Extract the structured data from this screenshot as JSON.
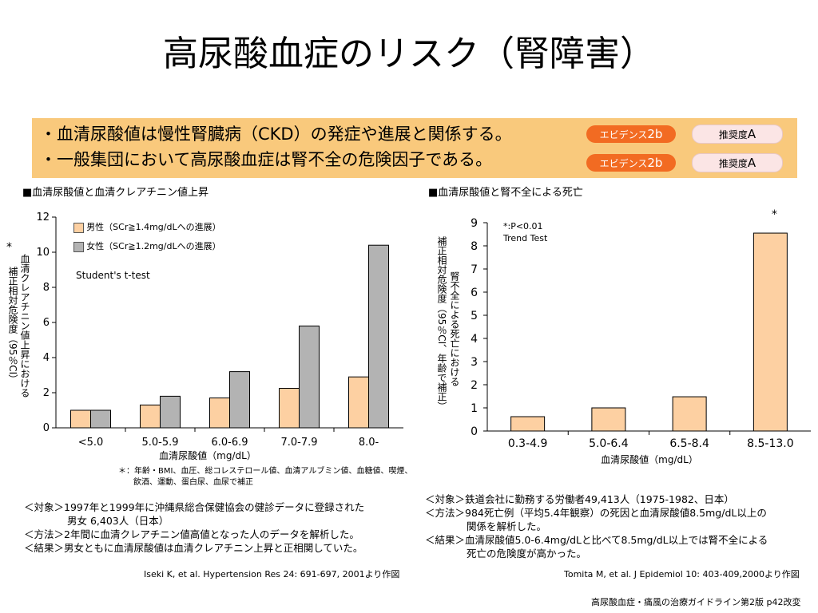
{
  "title": "高尿酸血症のリスク（腎障害）",
  "summary": {
    "lines": [
      {
        "text": "・血清尿酸値は慢性腎臓病（CKD）の発症や進展と関係する。",
        "evidence_prefix": "エビデンス",
        "evidence_level": "2b",
        "recommend_prefix": "推奨度",
        "recommend_level": "A"
      },
      {
        "text": "・一般集団において高尿酸血症は腎不全の危険因子である。",
        "evidence_prefix": "エビデンス",
        "evidence_level": "2b",
        "recommend_prefix": "推奨度",
        "recommend_level": "A"
      }
    ],
    "colors": {
      "panel": "#f9c97c",
      "evidence_badge": "#f26b22",
      "recommend_badge": "#fbe5e5"
    }
  },
  "left": {
    "heading": "■血清尿酸値と血清クレアチニン値上昇",
    "asterisk": "*",
    "ylabel_main": "血清クレアチニン値上昇における",
    "ylabel_sub": "補正相対危険度（95％CI）",
    "test_note": "Student's t-test",
    "footnote_line1": "＊：年齢・BMI、血圧、総コレステロール値、血清アルブミン値、血糖値、喫煙、",
    "footnote_line2": "飲酒、運動、蛋白尿、血尿で補正",
    "notes": [
      "＜対象＞1997年と1999年に沖縄県総合保健協会の健診データに登録された",
      "男女 6,403人（日本）",
      "＜方法＞2年間に血清クレアチニン値高値となった人のデータを解析した。",
      "＜結果＞男女ともに血清尿酸値は血清クレアチニン上昇と正相関していた。"
    ],
    "citation": "Iseki K, et al. Hypertension Res 24: 691-697, 2001より作図"
  },
  "right": {
    "heading": "■血清尿酸値と腎不全による死亡",
    "ylabel_main": "腎不全による死亡における",
    "ylabel_sub": "補正相対危険度（95％CI、年齢で補正）",
    "sig_note": "*:P<0.01",
    "test_note": "Trend Test",
    "notes": [
      "＜対象＞鉄道会社に勤務する労働者49,413人（1975-1982、日本）",
      "＜方法＞984死亡例（平均5.4年観察）の死因と血清尿酸値8.5mg/dL以上の",
      "関係を解析した。",
      "＜結果＞血清尿酸値5.0-6.4mg/dLと比べて8.5mg/dL以上では腎不全による",
      "死亡の危険度が高かった。"
    ],
    "citation": "Tomita M, et al. J Epidemiol 10: 403-409,2000より作図"
  },
  "source": "高尿酸血症・痛風の治療ガイドライン第2版 p42改変",
  "chart_data": [
    {
      "type": "bar",
      "categories": [
        "<5.0",
        "5.0-5.9",
        "6.0-6.9",
        "7.0-7.9",
        "8.0-"
      ],
      "series": [
        {
          "name": "男性（SCr≧1.4mg/dLへの進展）",
          "values": [
            1.0,
            1.3,
            1.7,
            2.25,
            2.9
          ],
          "color": "#fdd0a2"
        },
        {
          "name": "女性（SCr≧1.2mg/dLへの進展）",
          "values": [
            1.0,
            1.8,
            3.2,
            5.8,
            10.4
          ],
          "color": "#b3b3b3"
        }
      ],
      "xlabel": "血清尿酸値（mg/dL）",
      "ylabel": "血清クレアチニン値上昇における 補正相対危険度（95％CI）",
      "ylim": [
        0,
        12
      ],
      "yticks": [
        0,
        2,
        4,
        6,
        8,
        10,
        12
      ],
      "legend": "top-left"
    },
    {
      "type": "bar",
      "categories": [
        "0.3-4.9",
        "5.0-6.4",
        "6.5-8.4",
        "8.5-13.0"
      ],
      "values": [
        0.62,
        1.0,
        1.48,
        8.55
      ],
      "color": "#fdd0a2",
      "annotations": [
        {
          "category": "8.5-13.0",
          "text": "*"
        }
      ],
      "xlabel": "血清尿酸値（mg/dL）",
      "ylabel": "腎不全による死亡における 補正相対危険度（95％CI、年齢で補正）",
      "ylim": [
        0,
        9
      ],
      "yticks": [
        0,
        1,
        2,
        3,
        4,
        5,
        6,
        7,
        8,
        9
      ]
    }
  ]
}
